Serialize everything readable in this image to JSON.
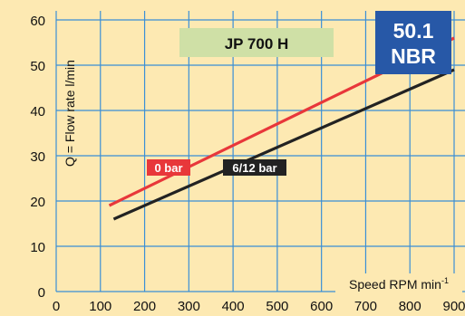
{
  "chart_data": {
    "type": "line",
    "title": "JP 700 H",
    "badge": [
      "50.1",
      "NBR"
    ],
    "xlabel": "Speed RPM min",
    "xlabel_sup": "-1",
    "ylabel": "Q = Flow rate l/min",
    "xlim": [
      0,
      900
    ],
    "ylim": [
      0,
      60
    ],
    "x_ticks": [
      0,
      100,
      200,
      300,
      400,
      500,
      600,
      700,
      800,
      900
    ],
    "y_ticks": [
      0,
      10,
      20,
      30,
      40,
      50,
      60
    ],
    "grid": true,
    "series": [
      {
        "name": "0 bar",
        "color": "#e8373a",
        "x": [
          120,
          900
        ],
        "y": [
          19,
          56
        ]
      },
      {
        "name": "6/12 bar",
        "color": "#222222",
        "x": [
          130,
          900
        ],
        "y": [
          16,
          49
        ]
      }
    ]
  },
  "colors": {
    "background": "#fde9b2",
    "grid": "#3a8fd6",
    "title_box": "#cfe0a6",
    "badge": "#2758a7"
  }
}
